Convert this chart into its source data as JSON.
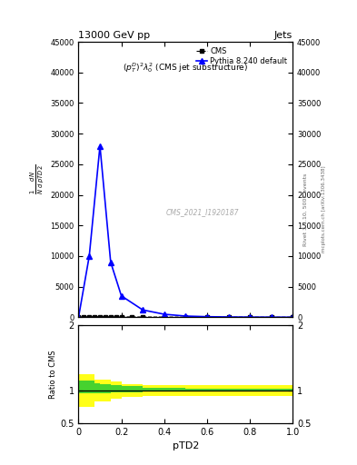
{
  "title_left": "13000 GeV pp",
  "title_right": "Jets",
  "subtitle": "$(p_T^D)^2\\lambda_0^2$ (CMS jet substructure)",
  "watermark": "CMS_2021_I1920187",
  "rivet_label": "Rivet 3.1.10, 500k events",
  "arxiv_label": "mcplots.cern.ch [arXiv:1306.3438]",
  "xlabel": "pTD2",
  "ratio_ylabel": "Ratio to CMS",
  "cms_x": [
    0.0,
    0.025,
    0.05,
    0.075,
    0.1,
    0.125,
    0.15,
    0.175,
    0.2,
    0.25,
    0.3,
    0.4,
    0.5,
    0.6,
    0.7,
    0.8,
    0.9,
    1.0
  ],
  "cms_y": [
    50,
    80,
    90,
    100,
    110,
    100,
    90,
    80,
    70,
    60,
    50,
    40,
    30,
    25,
    20,
    15,
    12,
    10
  ],
  "pythia_x": [
    0.0,
    0.05,
    0.1,
    0.15,
    0.2,
    0.3,
    0.4,
    0.5,
    0.6,
    0.7,
    0.8,
    0.9,
    1.0
  ],
  "pythia_y": [
    0,
    10000,
    28000,
    9000,
    3500,
    1200,
    500,
    200,
    100,
    50,
    30,
    20,
    10
  ],
  "ylim": [
    0,
    45000
  ],
  "xlim": [
    0,
    1
  ],
  "yticks": [
    0,
    5000,
    10000,
    15000,
    20000,
    25000,
    30000,
    35000,
    40000,
    45000
  ],
  "xticks": [
    0,
    0.2,
    0.4,
    0.6,
    0.8,
    1.0
  ],
  "ratio_ylim": [
    0.5,
    2.0
  ],
  "ratio_yticks": [
    0.5,
    1.0,
    2.0
  ],
  "cms_color": "black",
  "pythia_color": "blue",
  "ratio_x": [
    0.0,
    0.025,
    0.075,
    0.1,
    0.15,
    0.2,
    0.3,
    0.4,
    0.5,
    0.6,
    0.7,
    0.8,
    0.9,
    1.0
  ],
  "ratio_yel_lo": [
    0.75,
    0.75,
    0.83,
    0.83,
    0.87,
    0.9,
    0.92,
    0.92,
    0.92,
    0.92,
    0.92,
    0.92,
    0.92,
    0.92
  ],
  "ratio_yel_hi": [
    1.25,
    1.25,
    1.17,
    1.17,
    1.13,
    1.1,
    1.08,
    1.08,
    1.08,
    1.08,
    1.08,
    1.08,
    1.08,
    1.08
  ],
  "ratio_grn_lo": [
    0.95,
    0.95,
    0.96,
    0.96,
    0.97,
    0.975,
    0.98,
    0.98,
    0.98,
    0.98,
    0.98,
    0.98,
    0.98,
    0.98
  ],
  "ratio_grn_hi": [
    1.15,
    1.15,
    1.11,
    1.1,
    1.08,
    1.06,
    1.04,
    1.035,
    1.03,
    1.03,
    1.03,
    1.03,
    1.03,
    1.03
  ]
}
